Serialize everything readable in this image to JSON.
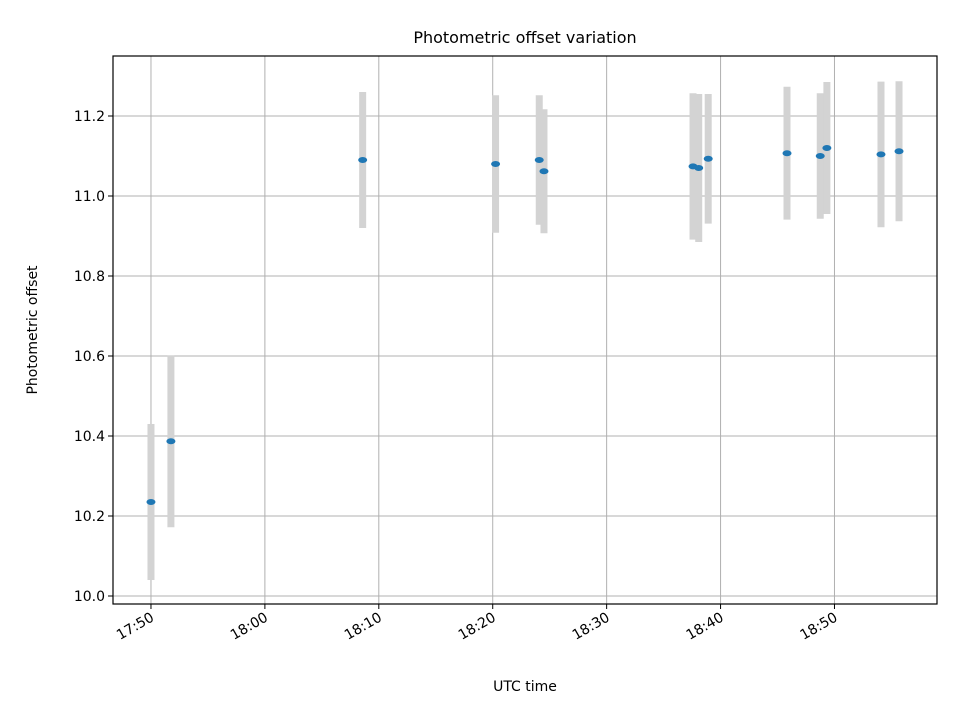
{
  "chart_data": {
    "type": "scatter",
    "title": "Photometric offset variation",
    "xlabel": "UTC time",
    "ylabel": "Photometric offset",
    "x_ticks": [
      "17:50",
      "18:00",
      "18:10",
      "18:20",
      "18:30",
      "18:40",
      "18:50"
    ],
    "y_ticks": [
      "10.0",
      "10.2",
      "10.4",
      "10.6",
      "10.8",
      "11.0",
      "11.2"
    ],
    "xlim": [
      "17:46:40",
      "18:59:00"
    ],
    "ylim": [
      9.98,
      11.35
    ],
    "grid": true,
    "colors": {
      "marker": "#1f77b4",
      "errorbar": "#d3d3d3",
      "grid": "#b0b0b0"
    },
    "series": [
      {
        "points": [
          {
            "x": "17:50:00",
            "y": 10.235,
            "yerr": 0.195
          },
          {
            "x": "17:51:45",
            "y": 10.387,
            "yerr": 0.215
          },
          {
            "x": "18:08:35",
            "y": 11.09,
            "yerr": 0.17
          },
          {
            "x": "18:20:15",
            "y": 11.08,
            "yerr": 0.172
          },
          {
            "x": "18:24:05",
            "y": 11.09,
            "yerr": 0.162
          },
          {
            "x": "18:24:30",
            "y": 11.062,
            "yerr": 0.155
          },
          {
            "x": "18:37:35",
            "y": 11.074,
            "yerr": 0.183
          },
          {
            "x": "18:38:05",
            "y": 11.07,
            "yerr": 0.185
          },
          {
            "x": "18:38:55",
            "y": 11.093,
            "yerr": 0.162
          },
          {
            "x": "18:45:50",
            "y": 11.107,
            "yerr": 0.166
          },
          {
            "x": "18:48:45",
            "y": 11.1,
            "yerr": 0.157
          },
          {
            "x": "18:49:20",
            "y": 11.12,
            "yerr": 0.165
          },
          {
            "x": "18:54:05",
            "y": 11.104,
            "yerr": 0.182
          },
          {
            "x": "18:55:40",
            "y": 11.112,
            "yerr": 0.175
          }
        ]
      }
    ]
  }
}
